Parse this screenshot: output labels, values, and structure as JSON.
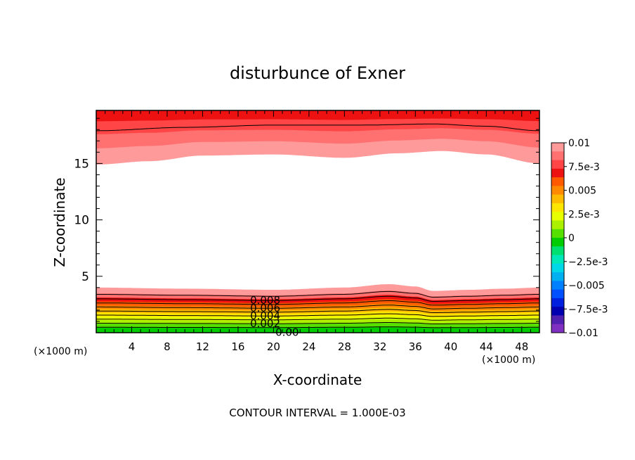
{
  "chart_data": {
    "type": "contour",
    "title": "disturbunce of Exner",
    "xlabel": "X-coordinate",
    "ylabel": "Z-coordinate",
    "x_unit_left": "(×1000 m)",
    "x_unit_right": "(×1000 m)",
    "footer": "CONTOUR INTERVAL = 1.000E-03",
    "xlim": [
      0,
      50
    ],
    "ylim": [
      0,
      19.7
    ],
    "x_ticks": [
      4,
      8,
      12,
      16,
      20,
      24,
      28,
      32,
      36,
      40,
      44,
      48
    ],
    "x_tick_labels": [
      "4",
      "8",
      "12",
      "16",
      "20",
      "24",
      "28",
      "32",
      "36",
      "40",
      "44",
      "48"
    ],
    "y_ticks": [
      5,
      10,
      15
    ],
    "y_tick_labels": [
      "5",
      "10",
      "15"
    ],
    "contour_interval": 0.001,
    "contour_labels": [
      "0.008",
      "0.006",
      "0.004",
      "0.002",
      "0.00"
    ],
    "colorbar": {
      "range": [
        -0.01,
        0.01
      ],
      "tick_labels": [
        "0.01",
        "7.5e-3",
        "0.005",
        "2.5e-3",
        "0",
        "−2.5e-3",
        "−0.005",
        "−7.5e-3",
        "−0.01"
      ],
      "colors": [
        "#ff9a9a",
        "#ff7070",
        "#ff4545",
        "#ee1111",
        "#ff5a00",
        "#ff8a00",
        "#ffbb00",
        "#ffe600",
        "#e8ff00",
        "#aaf000",
        "#55e000",
        "#00cc00",
        "#00e070",
        "#00e8b8",
        "#00d8e8",
        "#00b0f0",
        "#0080ff",
        "#0050ff",
        "#0020e0",
        "#0000b0",
        "#5020b0",
        "#8030c0"
      ]
    },
    "fields": {
      "upper_band_bottom_z": [
        [
          0,
          14.9
        ],
        [
          6,
          15.2
        ],
        [
          12,
          15.7
        ],
        [
          20,
          15.8
        ],
        [
          28,
          15.5
        ],
        [
          34,
          15.9
        ],
        [
          39,
          16.1
        ],
        [
          44,
          15.8
        ],
        [
          50,
          15.0
        ]
      ],
      "upper_contour_z": [
        [
          0,
          17.9
        ],
        [
          10,
          18.2
        ],
        [
          20,
          18.4
        ],
        [
          30,
          18.4
        ],
        [
          38,
          18.5
        ],
        [
          44,
          18.3
        ],
        [
          50,
          17.9
        ]
      ],
      "surface_layer_top_z": [
        [
          0,
          4.0
        ],
        [
          10,
          3.9
        ],
        [
          20,
          3.8
        ],
        [
          28,
          4.0
        ],
        [
          33,
          4.3
        ],
        [
          36,
          4.1
        ],
        [
          38,
          3.7
        ],
        [
          42,
          3.8
        ],
        [
          46,
          3.9
        ],
        [
          50,
          4.0
        ]
      ]
    }
  }
}
